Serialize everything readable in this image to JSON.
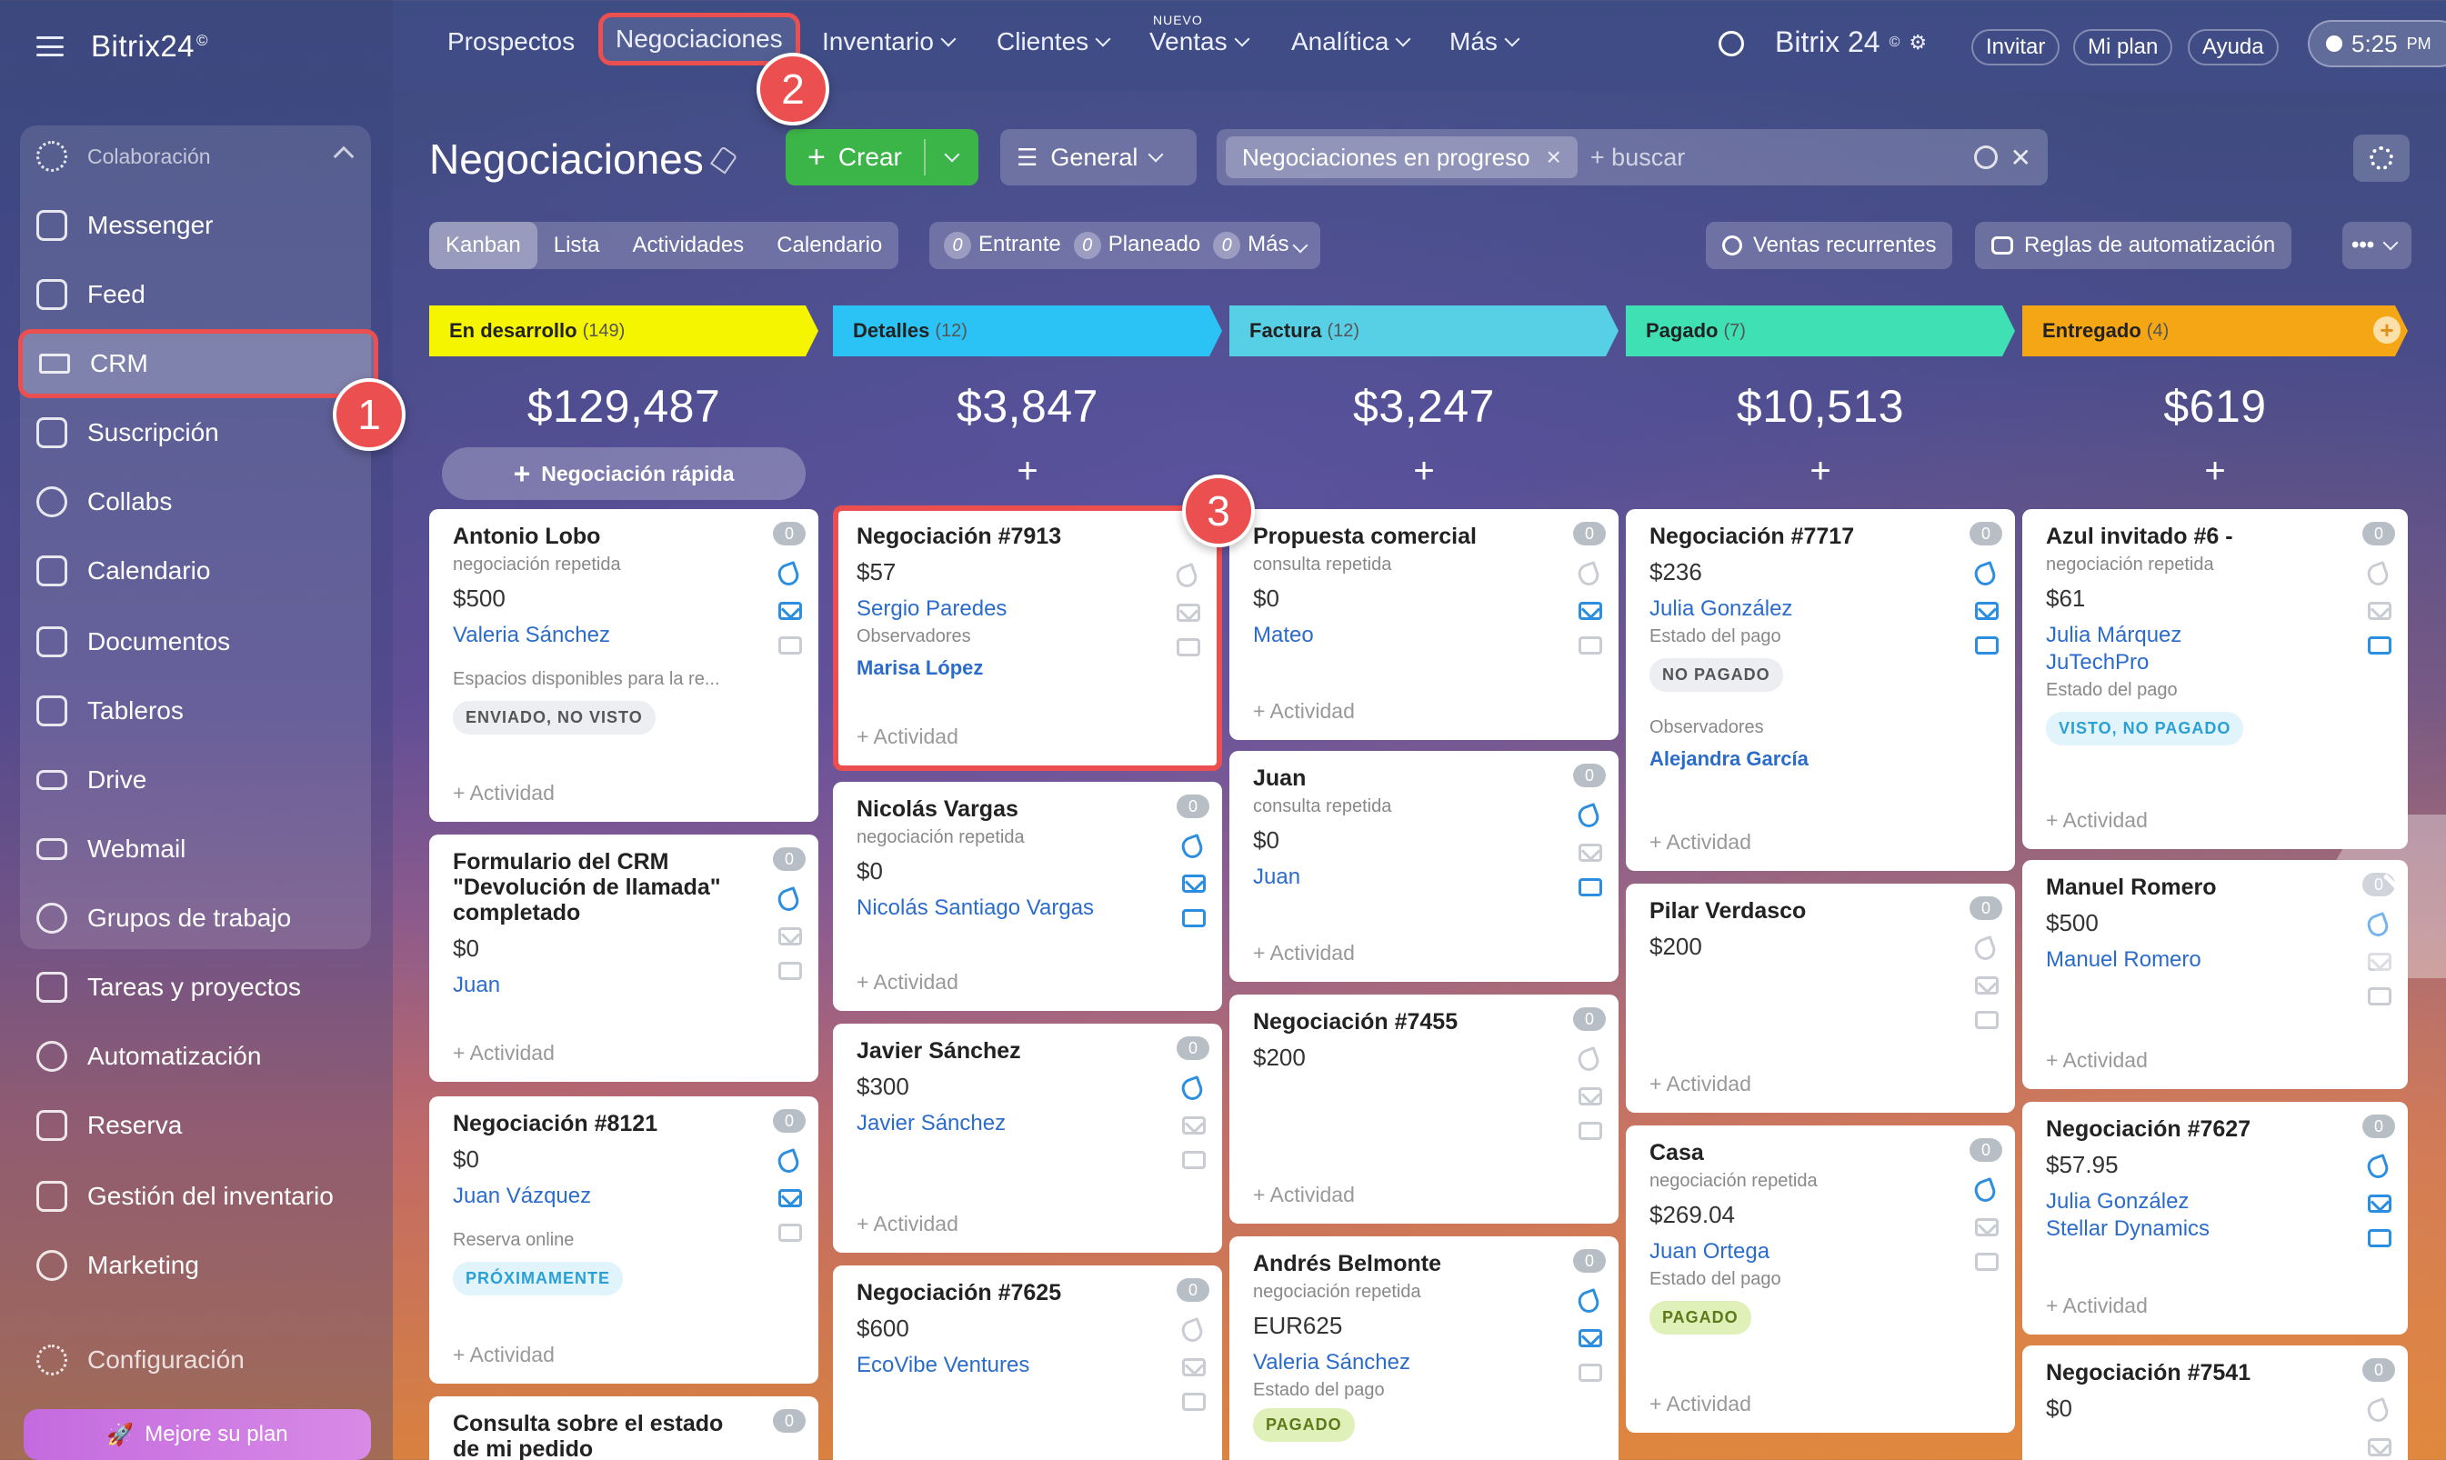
{
  "app": {
    "logo": "Bitrix24",
    "logo_mark": "©"
  },
  "sidebar": {
    "group_label": "Colaboración",
    "items": [
      {
        "label": "Messenger"
      },
      {
        "label": "Feed"
      },
      {
        "label": "CRM"
      },
      {
        "label": "Suscripción"
      },
      {
        "label": "Collabs"
      },
      {
        "label": "Calendario"
      },
      {
        "label": "Documentos"
      },
      {
        "label": "Tableros"
      },
      {
        "label": "Drive"
      },
      {
        "label": "Webmail"
      },
      {
        "label": "Grupos de trabajo"
      },
      {
        "label": "Tareas y proyectos"
      },
      {
        "label": "Automatización"
      },
      {
        "label": "Reserva"
      },
      {
        "label": "Gestión del inventario"
      },
      {
        "label": "Marketing"
      },
      {
        "label": "Configuración"
      }
    ],
    "upgrade": "Mejore su plan"
  },
  "badges": {
    "one": "1",
    "two": "2",
    "three": "3"
  },
  "topnav": {
    "items": [
      {
        "label": "Prospectos"
      },
      {
        "label": "Negociaciones"
      },
      {
        "label": "Inventario"
      },
      {
        "label": "Clientes"
      },
      {
        "label": "Ventas"
      },
      {
        "label": "Analítica"
      },
      {
        "label": "Más"
      }
    ],
    "new_tag": "NUEVO",
    "brand": "Bitrix 24",
    "invite": "Invitar",
    "plan": "Mi plan",
    "help": "Ayuda",
    "time": "5:25",
    "ampm": "PM"
  },
  "header": {
    "title": "Negociaciones",
    "create": "Crear",
    "general": "General",
    "filter_chip": "Negociaciones en progreso",
    "search_placeholder": "+ buscar"
  },
  "views": [
    "Kanban",
    "Lista",
    "Actividades",
    "Calendario"
  ],
  "counters": [
    {
      "count": "0",
      "label": "Entrante"
    },
    {
      "count": "0",
      "label": "Planeado"
    },
    {
      "count": "0",
      "label": "Más"
    }
  ],
  "right_buttons": {
    "recurring": "Ventas recurrentes",
    "rules": "Reglas de automatización",
    "more": "•••"
  },
  "quick_deal": "Negociación rápida",
  "activity_label": "+ Actividad",
  "columns": [
    {
      "name": "En desarrollo",
      "count": "(149)",
      "sum": "$129,487",
      "color": "#f5f500",
      "cards": [
        {
          "title": "Antonio Lobo",
          "sub": "negociación repetida",
          "amount": "$500",
          "link": "Valeria Sánchez",
          "label": "Espacios disponibles para la re...",
          "tag": "ENVIADO, NO VISTO",
          "tag_style": "gray",
          "zero": "0"
        },
        {
          "title": "Formulario del CRM \"Devolución de llamada\" completado",
          "amount": "$0",
          "link": "Juan",
          "zero": "0"
        },
        {
          "title": "Negociación #8121",
          "amount": "$0",
          "link": "Juan Vázquez",
          "label": "Reserva online",
          "tag": "PRÓXIMAMENTE",
          "tag_style": "blue",
          "zero": "0"
        },
        {
          "title": "Consulta sobre el estado de mi pedido",
          "zero": "0"
        }
      ]
    },
    {
      "name": "Detalles",
      "count": "(12)",
      "sum": "$3,847",
      "color": "#2bc3f5",
      "cards": [
        {
          "title": "Negociación #7913",
          "amount": "$57",
          "link": "Sergio Paredes",
          "label": "Observadores",
          "link2": "Marisa López",
          "zero": "0"
        },
        {
          "title": "Nicolás Vargas",
          "sub": "negociación repetida",
          "amount": "$0",
          "link": "Nicolás Santiago Vargas",
          "zero": "0"
        },
        {
          "title": "Javier Sánchez",
          "amount": "$300",
          "link": "Javier Sánchez",
          "zero": "0"
        },
        {
          "title": "Negociación #7625",
          "amount": "$600",
          "link": "EcoVibe Ventures",
          "zero": "0"
        }
      ]
    },
    {
      "name": "Factura",
      "count": "(12)",
      "sum": "$3,247",
      "color": "#57d0e6",
      "cards": [
        {
          "title": "Propuesta comercial",
          "sub": "consulta repetida",
          "amount": "$0",
          "link": "Mateo",
          "zero": "0"
        },
        {
          "title": "Juan",
          "sub": "consulta repetida",
          "amount": "$0",
          "link": "Juan",
          "zero": "0"
        },
        {
          "title": "Negociación #7455",
          "amount": "$200",
          "zero": "0"
        },
        {
          "title": "Andrés Belmonte",
          "sub": "negociación repetida",
          "amount": "EUR625",
          "link": "Valeria Sánchez",
          "label": "Estado del pago",
          "tag": "PAGADO",
          "tag_style": "green",
          "zero": "0"
        }
      ]
    },
    {
      "name": "Pagado",
      "count": "(7)",
      "sum": "$10,513",
      "color": "#3ee0b4",
      "cards": [
        {
          "title": "Negociación #7717",
          "amount": "$236",
          "link": "Julia González",
          "label": "Estado del pago",
          "tag": "NO PAGADO",
          "tag_style": "gray",
          "label2": "Observadores",
          "link2": "Alejandra García",
          "zero": "0"
        },
        {
          "title": "Pilar Verdasco",
          "amount": "$200",
          "zero": "0"
        },
        {
          "title": "Casa",
          "sub": "negociación repetida",
          "amount": "$269.04",
          "link": "Juan Ortega",
          "label": "Estado del pago",
          "tag": "PAGADO",
          "tag_style": "green",
          "zero": "0"
        }
      ]
    },
    {
      "name": "Entregado",
      "count": "(4)",
      "sum": "$619",
      "color": "#f5a614",
      "cards": [
        {
          "title": "Azul invitado #6 -",
          "sub": "negociación repetida",
          "amount": "$61",
          "link": "Julia Márquez",
          "link_b": "JuTechPro",
          "label": "Estado del pago",
          "tag": "VISTO, NO PAGADO",
          "tag_style": "blue",
          "zero": "0"
        },
        {
          "title": "Manuel Romero",
          "amount": "$500",
          "link": "Manuel Romero",
          "zero": "0"
        },
        {
          "title": "Negociación #7627",
          "amount": "$57.95",
          "link": "Julia González",
          "link_b": "Stellar Dynamics",
          "zero": "0"
        },
        {
          "title": "Negociación #7541",
          "amount": "$0",
          "zero": "0"
        }
      ]
    }
  ]
}
